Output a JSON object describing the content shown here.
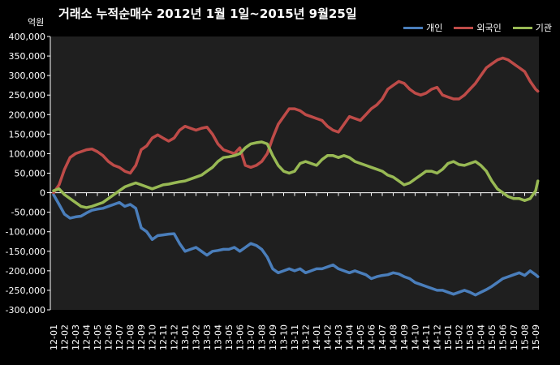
{
  "title": "거래소  누적순매수 2012년 1월 1일~2015년 9월25일",
  "unit": "억원",
  "colors": {
    "individual": "#4a7ebb",
    "foreign": "#be4b48",
    "institution": "#98b954",
    "plot_bg": "#1f1f1f",
    "axis": "#ffffff"
  },
  "chart_data": {
    "type": "line",
    "title": "거래소  누적순매수 2012년 1월 1일~2015년 9월25일",
    "ylabel": "억원",
    "ylim": [
      -300000,
      400000
    ],
    "yticks": [
      400000,
      350000,
      300000,
      250000,
      200000,
      150000,
      100000,
      50000,
      0,
      -50000,
      -100000,
      -150000,
      -200000,
      -250000,
      -300000
    ],
    "ytick_labels": [
      "400,000",
      "350,000",
      "300,000",
      "250,000",
      "200,000",
      "150,000",
      "100,000",
      "50,000",
      "0",
      "-50,000",
      "-100,000",
      "-150,000",
      "-200,000",
      "-250,000",
      "-300,000"
    ],
    "categories": [
      "12-01",
      "12-02",
      "12-03",
      "12-04",
      "12-05",
      "12-06",
      "12-07",
      "12-08",
      "12-09",
      "12-10",
      "12-11",
      "12-12",
      "13-01",
      "13-02",
      "13-03",
      "13-04",
      "13-05",
      "13-06",
      "13-07",
      "13-08",
      "13-09",
      "13-10",
      "13-11",
      "13-12",
      "14-01",
      "14-02",
      "14-03",
      "14-04",
      "14-05",
      "14-06",
      "14-07",
      "14-08",
      "14-09",
      "14-10",
      "14-11",
      "14-12",
      "15-01",
      "15-02",
      "15-03",
      "15-04",
      "15-05",
      "15-06",
      "15-07",
      "15-08",
      "15-09"
    ],
    "legend_position": "top-right",
    "grid": false,
    "series": [
      {
        "name": "개인",
        "color": "#4a7ebb",
        "x": [
          0,
          0.5,
          1,
          1.5,
          2,
          2.5,
          3,
          3.5,
          4,
          4.5,
          5,
          5.5,
          6,
          6.5,
          7,
          7.5,
          8,
          8.5,
          9,
          9.5,
          10,
          10.5,
          11,
          11.5,
          12,
          12.5,
          13,
          13.5,
          14,
          14.5,
          15,
          15.5,
          16,
          16.5,
          17,
          17.5,
          18,
          18.5,
          19,
          19.5,
          20,
          20.5,
          21,
          21.5,
          22,
          22.5,
          23,
          23.5,
          24,
          24.5,
          25,
          25.5,
          26,
          26.5,
          27,
          27.5,
          28,
          28.5,
          29,
          29.5,
          30,
          30.5,
          31,
          31.5,
          32,
          32.5,
          33,
          33.5,
          34,
          34.5,
          35,
          35.5,
          36,
          36.5,
          37,
          37.5,
          38,
          38.5,
          39,
          39.5,
          40,
          40.5,
          41,
          41.5,
          42,
          42.5,
          43,
          43.5,
          44,
          44.2
        ],
        "values": [
          -5000,
          -30000,
          -55000,
          -65000,
          -62000,
          -60000,
          -52000,
          -45000,
          -42000,
          -40000,
          -35000,
          -30000,
          -25000,
          -35000,
          -30000,
          -40000,
          -90000,
          -100000,
          -120000,
          -110000,
          -108000,
          -106000,
          -105000,
          -130000,
          -150000,
          -145000,
          -140000,
          -150000,
          -160000,
          -150000,
          -148000,
          -145000,
          -145000,
          -140000,
          -150000,
          -140000,
          -130000,
          -135000,
          -145000,
          -165000,
          -195000,
          -205000,
          -200000,
          -195000,
          -200000,
          -195000,
          -205000,
          -200000,
          -195000,
          -195000,
          -190000,
          -185000,
          -195000,
          -200000,
          -205000,
          -200000,
          -205000,
          -210000,
          -220000,
          -215000,
          -212000,
          -210000,
          -205000,
          -208000,
          -215000,
          -220000,
          -230000,
          -235000,
          -240000,
          -245000,
          -250000,
          -250000,
          -255000,
          -260000,
          -255000,
          -250000,
          -255000,
          -262000,
          -255000,
          -248000,
          -240000,
          -230000,
          -220000,
          -215000,
          -210000,
          -205000,
          -212000,
          -200000,
          -210000,
          -215000
        ]
      },
      {
        "name": "외국인",
        "color": "#be4b48",
        "x": [
          0,
          0.5,
          1,
          1.5,
          2,
          2.5,
          3,
          3.5,
          4,
          4.5,
          5,
          5.5,
          6,
          6.5,
          7,
          7.5,
          8,
          8.5,
          9,
          9.5,
          10,
          10.5,
          11,
          11.5,
          12,
          12.5,
          13,
          13.5,
          14,
          14.5,
          15,
          15.5,
          16,
          16.5,
          17,
          17.5,
          18,
          18.5,
          19,
          19.5,
          20,
          20.5,
          21,
          21.5,
          22,
          22.5,
          23,
          23.5,
          24,
          24.5,
          25,
          25.5,
          26,
          26.5,
          27,
          27.5,
          28,
          28.5,
          29,
          29.5,
          30,
          30.5,
          31,
          31.5,
          32,
          32.5,
          33,
          33.5,
          34,
          34.5,
          35,
          35.5,
          36,
          36.5,
          37,
          37.5,
          38,
          38.5,
          39,
          39.5,
          40,
          40.5,
          41,
          41.5,
          42,
          42.5,
          43,
          43.5,
          44,
          44.2
        ],
        "values": [
          0,
          20000,
          60000,
          90000,
          100000,
          105000,
          110000,
          112000,
          105000,
          95000,
          80000,
          70000,
          65000,
          55000,
          50000,
          70000,
          110000,
          120000,
          140000,
          148000,
          140000,
          132000,
          140000,
          160000,
          170000,
          165000,
          160000,
          165000,
          168000,
          150000,
          125000,
          110000,
          105000,
          100000,
          115000,
          70000,
          65000,
          70000,
          80000,
          100000,
          140000,
          175000,
          195000,
          215000,
          215000,
          210000,
          200000,
          195000,
          190000,
          185000,
          170000,
          160000,
          155000,
          175000,
          195000,
          190000,
          185000,
          200000,
          215000,
          225000,
          240000,
          265000,
          275000,
          285000,
          280000,
          265000,
          255000,
          250000,
          255000,
          265000,
          270000,
          250000,
          245000,
          240000,
          240000,
          250000,
          265000,
          280000,
          300000,
          320000,
          330000,
          340000,
          345000,
          340000,
          330000,
          320000,
          310000,
          285000,
          265000,
          260000
        ]
      },
      {
        "name": "기관",
        "color": "#98b954",
        "x": [
          0,
          0.5,
          1,
          1.5,
          2,
          2.5,
          3,
          3.5,
          4,
          4.5,
          5,
          5.5,
          6,
          6.5,
          7,
          7.5,
          8,
          8.5,
          9,
          9.5,
          10,
          10.5,
          11,
          11.5,
          12,
          12.5,
          13,
          13.5,
          14,
          14.5,
          15,
          15.5,
          16,
          16.5,
          17,
          17.5,
          18,
          18.5,
          19,
          19.5,
          20,
          20.5,
          21,
          21.5,
          22,
          22.5,
          23,
          23.5,
          24,
          24.5,
          25,
          25.5,
          26,
          26.5,
          27,
          27.5,
          28,
          28.5,
          29,
          29.5,
          30,
          30.5,
          31,
          31.5,
          32,
          32.5,
          33,
          33.5,
          34,
          34.5,
          35,
          35.5,
          36,
          36.5,
          37,
          37.5,
          38,
          38.5,
          39,
          39.5,
          40,
          40.5,
          41,
          41.5,
          42,
          42.5,
          43,
          43.5,
          44,
          44.2
        ],
        "values": [
          5000,
          10000,
          -5000,
          -15000,
          -25000,
          -35000,
          -38000,
          -35000,
          -30000,
          -25000,
          -15000,
          -5000,
          5000,
          15000,
          20000,
          25000,
          20000,
          15000,
          10000,
          15000,
          20000,
          22000,
          25000,
          28000,
          30000,
          35000,
          40000,
          45000,
          55000,
          65000,
          80000,
          90000,
          92000,
          95000,
          100000,
          115000,
          125000,
          128000,
          130000,
          125000,
          95000,
          70000,
          55000,
          50000,
          55000,
          75000,
          80000,
          75000,
          70000,
          85000,
          95000,
          95000,
          90000,
          95000,
          90000,
          80000,
          75000,
          70000,
          65000,
          60000,
          55000,
          45000,
          40000,
          30000,
          20000,
          25000,
          35000,
          45000,
          55000,
          55000,
          50000,
          60000,
          75000,
          80000,
          72000,
          70000,
          75000,
          80000,
          70000,
          55000,
          30000,
          10000,
          0,
          -10000,
          -15000,
          -15000,
          -20000,
          -15000,
          5000,
          30000
        ]
      }
    ]
  }
}
